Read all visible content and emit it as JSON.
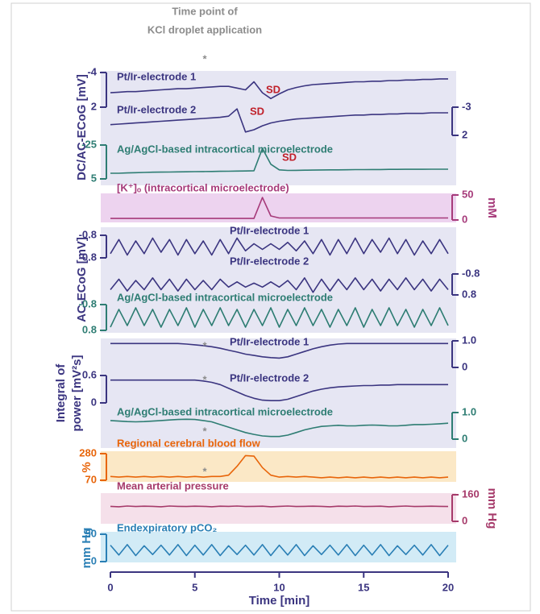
{
  "chart_data": {
    "type": "line",
    "annotation": [
      "Time point of",
      "KCl droplet application"
    ],
    "marker": "*",
    "x": [
      0,
      0.5,
      1,
      1.5,
      2,
      2.5,
      3,
      3.5,
      4,
      4.5,
      5,
      5.5,
      6,
      6.5,
      7,
      7.5,
      8,
      8.5,
      9,
      9.5,
      10,
      10.5,
      11,
      11.5,
      12,
      12.5,
      13,
      13.5,
      14,
      14.5,
      15,
      15.5,
      16,
      16.5,
      17,
      17.5,
      18,
      18.5,
      19,
      19.5,
      20
    ],
    "xlim": [
      0,
      20
    ],
    "xticks": [
      0,
      5,
      10,
      15,
      20
    ],
    "xlabel": "Time [min]",
    "panels": [
      {
        "background": "#e6e6f3",
        "ylabel": "DC/AC-ECoG [mV]"
      },
      {
        "background": "#edd3ef",
        "y2label": "mM"
      },
      {
        "background": "#e6e6f3",
        "ylabel": "AC-ECoG [mV]"
      },
      {
        "background": "#e6e6f3",
        "ylabel": [
          "Integral of",
          "power [mV²s]"
        ]
      },
      {
        "background": "#fbe8c6",
        "ylabel": "%"
      },
      {
        "background": "#f5e0ea",
        "y2label": "mm Hg"
      },
      {
        "background": "#d2ebf6",
        "ylabel": "mm Hg"
      }
    ],
    "series": [
      {
        "name": "Pt/Ir-electrode 1",
        "color": "#3b3580",
        "axis": "y",
        "ylim": [
          2,
          -4
        ],
        "yticks": [
          -4,
          2
        ],
        "annotation": "SD",
        "values": [
          -0.5,
          -0.6,
          -0.7,
          -0.7,
          -0.8,
          -0.9,
          -1.0,
          -1.1,
          -1.2,
          -1.2,
          -1.3,
          -1.4,
          -1.5,
          -1.6,
          -1.6,
          -1.3,
          -1.0,
          -2.4,
          -0.5,
          0.5,
          -0.3,
          -1.0,
          -1.4,
          -1.7,
          -1.9,
          -2.0,
          -2.1,
          -2.2,
          -2.3,
          -2.4,
          -2.4,
          -2.5,
          -2.5,
          -2.6,
          -2.6,
          -2.7,
          -2.7,
          -2.8,
          -2.8,
          -2.9,
          -2.9
        ]
      },
      {
        "name": "Pt/Ir-electrode 2",
        "color": "#3b3580",
        "axis": "y2",
        "ylim": [
          2,
          -3
        ],
        "yticks": [
          -3,
          2
        ],
        "annotation": "SD",
        "values": [
          0.1,
          0.0,
          -0.1,
          -0.2,
          -0.3,
          -0.4,
          -0.5,
          -0.6,
          -0.7,
          -0.8,
          -0.9,
          -1.0,
          -1.1,
          -1.2,
          -1.4,
          -2.7,
          1.4,
          1.0,
          0.3,
          -0.2,
          -0.5,
          -0.7,
          -0.9,
          -1.0,
          -1.1,
          -1.2,
          -1.3,
          -1.4,
          -1.5,
          -1.6,
          -1.6,
          -1.7,
          -1.7,
          -1.8,
          -1.8,
          -1.9,
          -1.9,
          -1.9,
          -2.0,
          -2.0,
          -2.0
        ]
      },
      {
        "name": "Ag/AgCl-based intracortical microelectrode",
        "color": "#2e7d73",
        "axis": "y",
        "ylim": [
          5,
          -25
        ],
        "yticks": [
          -25,
          5
        ],
        "annotation": "SD",
        "values": [
          0,
          0,
          -0.3,
          -0.5,
          -0.7,
          -0.9,
          -1,
          -1.1,
          -1.2,
          -1.3,
          -1.4,
          -1.5,
          -1.6,
          -1.7,
          -1.8,
          -1.9,
          -2,
          -2.2,
          -22,
          -8,
          -3,
          -2.5,
          -2.6,
          -2.7,
          -2.8,
          -2.9,
          -3,
          -3,
          -3.1,
          -3.2,
          -3.2,
          -3.3,
          -3.3,
          -3.4,
          -3.4,
          -3.5,
          -3.5,
          -3.5,
          -3.6,
          -3.6,
          -3.6
        ]
      },
      {
        "name": "[K⁺]ₒ (intracortical microelectrode)",
        "color": "#a63a7a",
        "axis": "y2",
        "ylim": [
          0,
          50
        ],
        "yticks": [
          0,
          50
        ],
        "values": [
          3,
          3,
          3,
          3,
          3,
          3,
          3,
          3,
          3,
          3,
          3,
          3,
          3,
          3,
          3,
          3,
          3,
          3,
          45,
          8,
          4,
          4,
          4,
          4,
          4,
          4,
          4,
          4,
          4,
          4,
          4,
          4,
          4,
          4,
          4,
          4,
          4,
          4,
          4,
          4,
          4
        ]
      },
      {
        "name": "Pt/Ir-electrode 1",
        "color": "#3b3580",
        "axis": "y",
        "ylim": [
          0.8,
          -0.8
        ],
        "yticks": [
          -0.8,
          0.8
        ],
        "values": [
          0.5,
          -0.5,
          0.6,
          -0.4,
          0.5,
          -0.6,
          0.4,
          -0.5,
          0.6,
          -0.5,
          0.5,
          -0.4,
          0.6,
          -0.5,
          0.5,
          -0.6,
          0.3,
          -0.2,
          0.2,
          -0.2,
          0.2,
          -0.3,
          0.3,
          -0.4,
          0.5,
          -0.5,
          0.6,
          -0.5,
          0.5,
          -0.6,
          0.5,
          -0.5,
          0.4,
          -0.6,
          0.5,
          -0.5,
          0.6,
          -0.4,
          0.5,
          -0.5,
          0.5
        ]
      },
      {
        "name": "Pt/Ir-electrode 2",
        "color": "#3b3580",
        "axis": "y2",
        "ylim": [
          0.8,
          -0.8
        ],
        "yticks": [
          -0.8,
          0.8
        ],
        "values": [
          0.4,
          -0.4,
          0.5,
          -0.3,
          0.4,
          -0.5,
          0.4,
          -0.4,
          0.5,
          -0.4,
          0.4,
          -0.3,
          0.4,
          -0.4,
          0.2,
          -0.2,
          0.2,
          -0.1,
          0.2,
          -0.2,
          0.2,
          -0.3,
          0.4,
          -0.5,
          0.6,
          -0.4,
          0.5,
          -0.4,
          0.4,
          -0.5,
          0.4,
          -0.4,
          0.5,
          -0.4,
          0.4,
          -0.5,
          0.4,
          -0.4,
          0.5,
          -0.4,
          0.4
        ]
      },
      {
        "name": "Ag/AgCl-based intracortical microelectrode",
        "color": "#2e7d73",
        "axis": "y",
        "ylim": [
          0.8,
          -0.8
        ],
        "yticks": [
          -0.8,
          0.8
        ],
        "values": [
          0.6,
          -0.5,
          0.5,
          -0.6,
          0.5,
          -0.5,
          0.6,
          -0.5,
          0.5,
          -0.6,
          0.6,
          -0.5,
          0.5,
          -0.6,
          0.5,
          -0.5,
          0.6,
          -0.5,
          0.5,
          -0.6,
          0.6,
          -0.5,
          0.5,
          -0.6,
          0.5,
          -0.5,
          0.6,
          -0.5,
          0.5,
          -0.6,
          0.6,
          -0.5,
          0.5,
          -0.6,
          0.5,
          -0.5,
          0.6,
          -0.5,
          0.5,
          -0.6,
          0.5
        ]
      },
      {
        "name": "Pt/Ir-electrode 1",
        "color": "#3b3580",
        "axis": "y2",
        "ylim": [
          0,
          1
        ],
        "yticks": [
          {
            "value": 1,
            "label": "1.0"
          },
          0
        ],
        "values": [
          0.9,
          0.9,
          0.9,
          0.9,
          0.9,
          0.9,
          0.9,
          0.9,
          0.9,
          0.88,
          0.85,
          0.82,
          0.78,
          0.72,
          0.65,
          0.58,
          0.5,
          0.45,
          0.4,
          0.37,
          0.35,
          0.4,
          0.5,
          0.6,
          0.7,
          0.78,
          0.84,
          0.88,
          0.9,
          0.9,
          0.9,
          0.9,
          0.9,
          0.9,
          0.9,
          0.9,
          0.9,
          0.9,
          0.9,
          0.9,
          0.9
        ]
      },
      {
        "name": "Pt/Ir-electrode 2",
        "color": "#3b3580",
        "axis": "y",
        "ylim": [
          0,
          0.6
        ],
        "yticks": [
          0.6,
          0
        ],
        "values": [
          0.5,
          0.5,
          0.5,
          0.5,
          0.5,
          0.5,
          0.5,
          0.5,
          0.5,
          0.5,
          0.5,
          0.48,
          0.45,
          0.4,
          0.32,
          0.24,
          0.16,
          0.1,
          0.06,
          0.05,
          0.05,
          0.08,
          0.14,
          0.2,
          0.26,
          0.3,
          0.33,
          0.35,
          0.36,
          0.37,
          0.38,
          0.38,
          0.39,
          0.39,
          0.4,
          0.4,
          0.4,
          0.4,
          0.4,
          0.4,
          0.4
        ]
      },
      {
        "name": "Ag/AgCl-based intracortical microelectrode",
        "color": "#2e7d73",
        "axis": "y2",
        "ylim": [
          0,
          1
        ],
        "yticks": [
          {
            "value": 1,
            "label": "1.0"
          },
          0
        ],
        "values": [
          0.7,
          0.68,
          0.66,
          0.65,
          0.66,
          0.68,
          0.7,
          0.72,
          0.74,
          0.75,
          0.74,
          0.7,
          0.65,
          0.55,
          0.45,
          0.35,
          0.25,
          0.18,
          0.12,
          0.1,
          0.1,
          0.15,
          0.25,
          0.35,
          0.42,
          0.48,
          0.5,
          0.52,
          0.5,
          0.5,
          0.52,
          0.53,
          0.52,
          0.5,
          0.5,
          0.52,
          0.55,
          0.55,
          0.56,
          0.58,
          0.6
        ]
      },
      {
        "name": "Regional cerebral blood flow",
        "color": "#e8650a",
        "axis": "y",
        "ylim": [
          70,
          280
        ],
        "yticks": [
          280,
          70
        ],
        "values": [
          100,
          95,
          100,
          95,
          100,
          95,
          100,
          95,
          100,
          95,
          100,
          95,
          100,
          100,
          110,
          180,
          265,
          260,
          170,
          110,
          95,
          100,
          95,
          100,
          95,
          90,
          95,
          90,
          95,
          90,
          95,
          90,
          95,
          90,
          95,
          90,
          95,
          90,
          95,
          90,
          95
        ]
      },
      {
        "name": "Mean arterial pressure",
        "color": "#a63a6a",
        "axis": "y2",
        "ylim": [
          0,
          160
        ],
        "yticks": [
          160,
          0
        ],
        "values": [
          90,
          88,
          92,
          89,
          91,
          90,
          88,
          92,
          90,
          89,
          91,
          90,
          88,
          91,
          90,
          92,
          89,
          90,
          91,
          88,
          90,
          92,
          89,
          90,
          91,
          90,
          88,
          91,
          90,
          92,
          89,
          90,
          91,
          88,
          90,
          92,
          89,
          90,
          91,
          90,
          89
        ]
      },
      {
        "name": "Endexpiratory pCO₂",
        "color": "#2a7fb5",
        "axis": "y",
        "ylim": [
          0,
          50
        ],
        "yticks": [
          50,
          0
        ],
        "values": [
          30,
          12,
          31,
          11,
          29,
          13,
          30,
          12,
          31,
          11,
          30,
          12,
          31,
          11,
          29,
          13,
          30,
          12,
          31,
          11,
          30,
          12,
          31,
          11,
          29,
          13,
          30,
          12,
          31,
          11,
          30,
          12,
          31,
          11,
          29,
          13,
          30,
          12,
          31,
          11,
          30
        ]
      }
    ]
  }
}
